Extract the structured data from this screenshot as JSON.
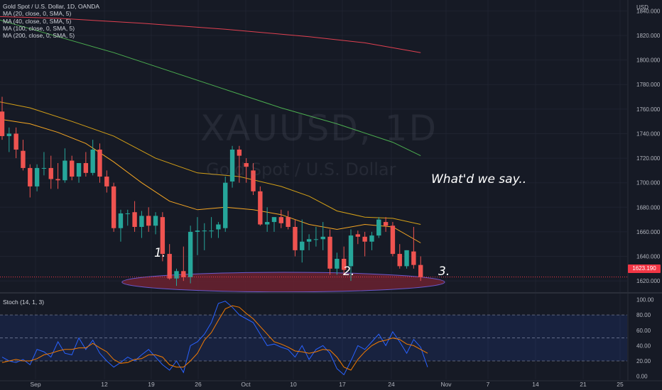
{
  "header": {
    "symbol_title": "Gold Spot / U.S. Dollar, 1D, OANDA",
    "currency": "USD"
  },
  "indicators": [
    {
      "label": "MA (20, close, 0, SMA, 5)",
      "color": "#f5a623"
    },
    {
      "label": "MA (40, close, 0, SMA, 5)",
      "color": "#d4a017"
    },
    {
      "label": "MA (100, close, 0, SMA, 5)",
      "color": "#4caf50"
    },
    {
      "label": "MA (200, close, 0, SMA, 5)",
      "color": "#e04050"
    }
  ],
  "watermark": {
    "symbol": "XAUUSD, 1D",
    "description": "Gold Spot / U.S. Dollar"
  },
  "annotations": {
    "main": "What'd we say..",
    "label_1": "1.",
    "label_2": "2.",
    "label_3": "3."
  },
  "last_price": "1623.190",
  "stoch_label": "Stoch (14, 1, 3)",
  "colors": {
    "background": "#161a25",
    "up": "#26a69a",
    "down": "#ef5350",
    "stoch_k": "#2962ff",
    "stoch_d": "#f57c00",
    "support_zone": "#6b2230"
  },
  "chart_data": [
    {
      "type": "candlestick",
      "title": "Gold Spot / U.S. Dollar, 1D, OANDA",
      "x_ticks": [
        "Sep",
        "12",
        "19",
        "26",
        "Oct",
        "10",
        "17",
        "24",
        "Nov",
        "7",
        "14",
        "21",
        "25"
      ],
      "y_ticks": [
        1620,
        1640,
        1660,
        1680,
        1700,
        1720,
        1740,
        1760,
        1780,
        1800,
        1820,
        1840
      ],
      "ylim": [
        1612,
        1846
      ],
      "candles": [
        {
          "o": 1758,
          "h": 1770,
          "l": 1735,
          "c": 1738
        },
        {
          "o": 1738,
          "h": 1745,
          "l": 1725,
          "c": 1740
        },
        {
          "o": 1740,
          "h": 1745,
          "l": 1720,
          "c": 1727
        },
        {
          "o": 1726,
          "h": 1735,
          "l": 1710,
          "c": 1712
        },
        {
          "o": 1712,
          "h": 1715,
          "l": 1688,
          "c": 1697
        },
        {
          "o": 1697,
          "h": 1715,
          "l": 1693,
          "c": 1712
        },
        {
          "o": 1712,
          "h": 1725,
          "l": 1706,
          "c": 1712
        },
        {
          "o": 1712,
          "h": 1722,
          "l": 1695,
          "c": 1703
        },
        {
          "o": 1703,
          "h": 1716,
          "l": 1695,
          "c": 1702
        },
        {
          "o": 1702,
          "h": 1728,
          "l": 1700,
          "c": 1718
        },
        {
          "o": 1718,
          "h": 1722,
          "l": 1702,
          "c": 1705
        },
        {
          "o": 1705,
          "h": 1716,
          "l": 1700,
          "c": 1716
        },
        {
          "o": 1716,
          "h": 1725,
          "l": 1705,
          "c": 1708
        },
        {
          "o": 1708,
          "h": 1735,
          "l": 1706,
          "c": 1727
        },
        {
          "o": 1727,
          "h": 1732,
          "l": 1700,
          "c": 1705
        },
        {
          "o": 1705,
          "h": 1710,
          "l": 1692,
          "c": 1697
        },
        {
          "o": 1697,
          "h": 1700,
          "l": 1660,
          "c": 1663
        },
        {
          "o": 1663,
          "h": 1678,
          "l": 1652,
          "c": 1675
        },
        {
          "o": 1675,
          "h": 1678,
          "l": 1665,
          "c": 1675
        },
        {
          "o": 1676,
          "h": 1685,
          "l": 1660,
          "c": 1664
        },
        {
          "o": 1664,
          "h": 1677,
          "l": 1655,
          "c": 1673
        },
        {
          "o": 1673,
          "h": 1680,
          "l": 1660,
          "c": 1665
        },
        {
          "o": 1665,
          "h": 1676,
          "l": 1658,
          "c": 1673
        },
        {
          "o": 1672,
          "h": 1676,
          "l": 1636,
          "c": 1642
        },
        {
          "o": 1642,
          "h": 1650,
          "l": 1621,
          "c": 1622
        },
        {
          "o": 1622,
          "h": 1630,
          "l": 1616,
          "c": 1628
        },
        {
          "o": 1628,
          "h": 1648,
          "l": 1620,
          "c": 1623
        },
        {
          "o": 1623,
          "h": 1665,
          "l": 1618,
          "c": 1660
        },
        {
          "o": 1660,
          "h": 1672,
          "l": 1641,
          "c": 1661
        },
        {
          "o": 1661,
          "h": 1667,
          "l": 1645,
          "c": 1661
        },
        {
          "o": 1661,
          "h": 1672,
          "l": 1655,
          "c": 1661
        },
        {
          "o": 1662,
          "h": 1668,
          "l": 1655,
          "c": 1666
        },
        {
          "o": 1663,
          "h": 1705,
          "l": 1660,
          "c": 1700
        },
        {
          "o": 1701,
          "h": 1730,
          "l": 1696,
          "c": 1727
        },
        {
          "o": 1727,
          "h": 1730,
          "l": 1700,
          "c": 1722
        },
        {
          "o": 1716,
          "h": 1720,
          "l": 1700,
          "c": 1713
        },
        {
          "o": 1710,
          "h": 1716,
          "l": 1690,
          "c": 1693
        },
        {
          "o": 1693,
          "h": 1697,
          "l": 1665,
          "c": 1666
        },
        {
          "o": 1666,
          "h": 1680,
          "l": 1660,
          "c": 1668
        },
        {
          "o": 1668,
          "h": 1672,
          "l": 1660,
          "c": 1672
        },
        {
          "o": 1672,
          "h": 1678,
          "l": 1663,
          "c": 1667
        },
        {
          "o": 1672,
          "h": 1677,
          "l": 1662,
          "c": 1664
        },
        {
          "o": 1664,
          "h": 1670,
          "l": 1640,
          "c": 1645
        },
        {
          "o": 1645,
          "h": 1670,
          "l": 1635,
          "c": 1652
        },
        {
          "o": 1652,
          "h": 1658,
          "l": 1645,
          "c": 1654
        },
        {
          "o": 1654,
          "h": 1664,
          "l": 1648,
          "c": 1654
        },
        {
          "o": 1654,
          "h": 1668,
          "l": 1645,
          "c": 1656
        },
        {
          "o": 1656,
          "h": 1662,
          "l": 1625,
          "c": 1630
        },
        {
          "o": 1630,
          "h": 1643,
          "l": 1625,
          "c": 1638
        },
        {
          "o": 1638,
          "h": 1648,
          "l": 1625,
          "c": 1629
        },
        {
          "o": 1632,
          "h": 1662,
          "l": 1620,
          "c": 1657
        },
        {
          "o": 1658,
          "h": 1661,
          "l": 1650,
          "c": 1656
        },
        {
          "o": 1656,
          "h": 1660,
          "l": 1640,
          "c": 1652
        },
        {
          "o": 1652,
          "h": 1660,
          "l": 1645,
          "c": 1657
        },
        {
          "o": 1657,
          "h": 1672,
          "l": 1655,
          "c": 1670
        },
        {
          "o": 1668,
          "h": 1672,
          "l": 1660,
          "c": 1665
        },
        {
          "o": 1665,
          "h": 1668,
          "l": 1640,
          "c": 1642
        },
        {
          "o": 1642,
          "h": 1650,
          "l": 1630,
          "c": 1632
        },
        {
          "o": 1632,
          "h": 1645,
          "l": 1630,
          "c": 1645
        },
        {
          "o": 1644,
          "h": 1664,
          "l": 1630,
          "c": 1633
        },
        {
          "o": 1633,
          "h": 1640,
          "l": 1620,
          "c": 1623
        }
      ],
      "moving_averages": [
        {
          "name": "MA (20, close, 0, SMA, 5)",
          "points": [
            [
              -4,
              1755
            ],
            [
              4,
              1748
            ],
            [
              8,
              1741
            ],
            [
              12,
              1732
            ],
            [
              16,
              1717
            ],
            [
              20,
              1700
            ],
            [
              24,
              1685
            ],
            [
              28,
              1678
            ],
            [
              32,
              1680
            ],
            [
              36,
              1678
            ],
            [
              40,
              1674
            ],
            [
              44,
              1666
            ],
            [
              48,
              1662
            ],
            [
              52,
              1666
            ],
            [
              56,
              1664
            ],
            [
              60,
              1651
            ]
          ]
        },
        {
          "name": "MA (40, close, 0, SMA, 5)",
          "points": [
            [
              -4,
              1770
            ],
            [
              4,
              1761
            ],
            [
              10,
              1750
            ],
            [
              16,
              1738
            ],
            [
              22,
              1720
            ],
            [
              28,
              1708
            ],
            [
              34,
              1705
            ],
            [
              40,
              1697
            ],
            [
              44,
              1689
            ],
            [
              48,
              1677
            ],
            [
              52,
              1672
            ],
            [
              56,
              1671
            ],
            [
              60,
              1666
            ]
          ]
        },
        {
          "name": "MA (100, close, 0, SMA, 5)",
          "points": [
            [
              -4,
              1840
            ],
            [
              0,
              1832
            ],
            [
              8,
              1819
            ],
            [
              16,
              1806
            ],
            [
              24,
              1791
            ],
            [
              32,
              1776
            ],
            [
              40,
              1761
            ],
            [
              48,
              1748
            ],
            [
              56,
              1733
            ],
            [
              60,
              1722
            ]
          ]
        },
        {
          "name": "MA (200, close, 0, SMA, 5)",
          "points": [
            [
              -4,
              1836
            ],
            [
              8,
              1834
            ],
            [
              20,
              1830
            ],
            [
              32,
              1825
            ],
            [
              44,
              1819
            ],
            [
              52,
              1814
            ],
            [
              60,
              1806
            ]
          ]
        }
      ],
      "current_price": 1623.19,
      "support_zone": {
        "center": 1619,
        "halfheight": 8,
        "from_index": 18,
        "to_index": 61
      }
    },
    {
      "type": "line",
      "title": "Stoch (14, 1, 3)",
      "y_ticks": [
        0,
        20,
        40,
        60,
        80,
        100
      ],
      "ylim": [
        -4,
        106
      ],
      "bands": [
        20,
        50,
        80
      ],
      "series": [
        {
          "name": "K",
          "color": "#2962ff",
          "values": [
            25,
            20,
            18,
            22,
            15,
            35,
            32,
            25,
            45,
            30,
            28,
            50,
            35,
            47,
            30,
            20,
            12,
            18,
            25,
            20,
            28,
            35,
            25,
            15,
            8,
            20,
            5,
            40,
            45,
            55,
            70,
            95,
            98,
            90,
            80,
            75,
            70,
            55,
            40,
            42,
            38,
            35,
            25,
            40,
            22,
            35,
            40,
            30,
            10,
            2,
            20,
            40,
            35,
            45,
            55,
            40,
            58,
            45,
            30,
            48,
            38,
            12
          ]
        },
        {
          "name": "D",
          "color": "#f57c00",
          "values": [
            18,
            20,
            22,
            20,
            20,
            23,
            28,
            30,
            33,
            35,
            35,
            37,
            37,
            43,
            37,
            32,
            22,
            17,
            18,
            22,
            23,
            28,
            28,
            25,
            15,
            12,
            12,
            20,
            30,
            47,
            57,
            73,
            88,
            92,
            90,
            82,
            75,
            65,
            55,
            45,
            42,
            38,
            33,
            32,
            30,
            32,
            35,
            34,
            25,
            12,
            8,
            22,
            32,
            40,
            45,
            47,
            50,
            48,
            42,
            40,
            35,
            30
          ]
        }
      ]
    }
  ]
}
